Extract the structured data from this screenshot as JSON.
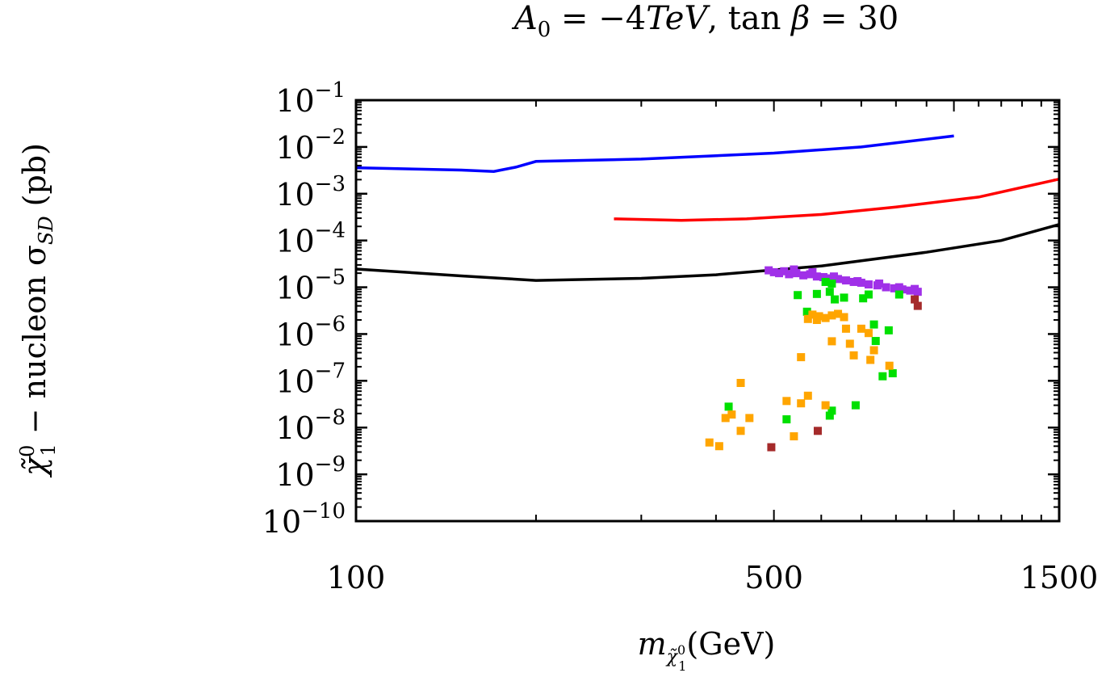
{
  "chart_data": {
    "type": "scatter",
    "title": "A₀ = −4TeV, tan β = 30",
    "title_parts": {
      "lhs": "A",
      "lhs_sub": "0",
      "eq1": " = −4",
      "italic": "TeV",
      "comma": ", tan ",
      "beta": "β",
      "eq2": " = 30"
    },
    "xlabel": {
      "m": "m",
      "sub_chi": "χ̃",
      "sub_sup": "0",
      "sub_sub": "1",
      "unit": "(GeV)"
    },
    "ylabel": {
      "chi": "χ̃",
      "sup": "0",
      "sub": "1",
      "text": " − nucleon σ",
      "sd": "SD",
      "unit": " (pb)"
    },
    "x_scale": "log",
    "y_scale": "log",
    "xlim": [
      100,
      1500
    ],
    "ylim_exp": [
      -10,
      -1
    ],
    "x_tick_labels": [
      {
        "value": 100,
        "label": "100"
      },
      {
        "value": 500,
        "label": "500"
      },
      {
        "value": 1500,
        "label": "1500"
      }
    ],
    "y_tick_labels": [
      {
        "exp": -1,
        "base": "10",
        "sup": "−1"
      },
      {
        "exp": -2,
        "base": "10",
        "sup": "−2"
      },
      {
        "exp": -3,
        "base": "10",
        "sup": "−3"
      },
      {
        "exp": -4,
        "base": "10",
        "sup": "−4"
      },
      {
        "exp": -5,
        "base": "10",
        "sup": "−5"
      },
      {
        "exp": -6,
        "base": "10",
        "sup": "−6"
      },
      {
        "exp": -7,
        "base": "10",
        "sup": "−7"
      },
      {
        "exp": -8,
        "base": "10",
        "sup": "−8"
      },
      {
        "exp": -9,
        "base": "10",
        "sup": "−9"
      },
      {
        "exp": -10,
        "base": "10",
        "sup": "−10"
      }
    ],
    "lines": [
      {
        "name": "blue-limit",
        "color": "#0000ff",
        "points": [
          [
            100,
            0.0036
          ],
          [
            150,
            0.0032
          ],
          [
            170,
            0.003
          ],
          [
            185,
            0.0037
          ],
          [
            200,
            0.0049
          ],
          [
            300,
            0.0055
          ],
          [
            500,
            0.0074
          ],
          [
            700,
            0.01
          ],
          [
            1000,
            0.0172
          ]
        ]
      },
      {
        "name": "red-limit",
        "color": "#ff0000",
        "points": [
          [
            270,
            0.00029
          ],
          [
            350,
            0.00027
          ],
          [
            450,
            0.00029
          ],
          [
            600,
            0.00036
          ],
          [
            800,
            0.00052
          ],
          [
            1100,
            0.00085
          ],
          [
            1500,
            0.00205
          ]
        ]
      },
      {
        "name": "black-limit",
        "color": "#000000",
        "points": [
          [
            100,
            2.45e-05
          ],
          [
            150,
            1.75e-05
          ],
          [
            200,
            1.4e-05
          ],
          [
            300,
            1.55e-05
          ],
          [
            400,
            1.85e-05
          ],
          [
            600,
            2.85e-05
          ],
          [
            900,
            5.6e-05
          ],
          [
            1200,
            0.0001
          ],
          [
            1500,
            0.00022
          ]
        ]
      }
    ],
    "series": [
      {
        "name": "purple-points",
        "color": "#a030e8",
        "points": [
          [
            490,
            2.3e-05
          ],
          [
            500,
            2.1e-05
          ],
          [
            510,
            2e-05
          ],
          [
            520,
            2.2e-05
          ],
          [
            530,
            1.9e-05
          ],
          [
            545,
            2e-05
          ],
          [
            560,
            1.8e-05
          ],
          [
            575,
            1.9e-05
          ],
          [
            590,
            1.7e-05
          ],
          [
            605,
            1.65e-05
          ],
          [
            620,
            1.55e-05
          ],
          [
            640,
            1.5e-05
          ],
          [
            660,
            1.4e-05
          ],
          [
            680,
            1.3e-05
          ],
          [
            700,
            1.25e-05
          ],
          [
            720,
            1.15e-05
          ],
          [
            745,
            1.1e-05
          ],
          [
            770,
            1e-05
          ],
          [
            795,
            9.5e-06
          ],
          [
            820,
            9e-06
          ],
          [
            845,
            8.5e-06
          ],
          [
            870,
            8e-06
          ],
          [
            540,
            2.4e-05
          ],
          [
            580,
            2.1e-05
          ],
          [
            630,
            1.7e-05
          ],
          [
            690,
            1.35e-05
          ],
          [
            750,
            1.2e-05
          ],
          [
            810,
            1e-05
          ],
          [
            860,
            9.2e-06
          ]
        ]
      },
      {
        "name": "green-points",
        "color": "#00e000",
        "points": [
          [
            548,
            6.8e-06
          ],
          [
            568,
            3e-06
          ],
          [
            590,
            7.2e-06
          ],
          [
            610,
            1.3e-05
          ],
          [
            620,
            8e-06
          ],
          [
            625,
            1.2e-05
          ],
          [
            632,
            5.5e-06
          ],
          [
            655,
            6e-06
          ],
          [
            705,
            5.8e-06
          ],
          [
            720,
            7e-06
          ],
          [
            735,
            1.6e-06
          ],
          [
            778,
            1.2e-06
          ],
          [
            740,
            7.1e-07
          ],
          [
            760,
            1.25e-07
          ],
          [
            790,
            1.45e-07
          ],
          [
            420,
            2.8e-08
          ],
          [
            525,
            1.5e-08
          ],
          [
            625,
            2.3e-08
          ],
          [
            620,
            1.8e-08
          ],
          [
            685,
            3e-08
          ],
          [
            810,
            7e-06
          ]
        ]
      },
      {
        "name": "orange-points",
        "color": "#ffa500",
        "points": [
          [
            580,
            2.6e-06
          ],
          [
            595,
            2.4e-06
          ],
          [
            610,
            2.2e-06
          ],
          [
            625,
            2.5e-06
          ],
          [
            640,
            2.7e-06
          ],
          [
            590,
            2e-06
          ],
          [
            570,
            2.1e-06
          ],
          [
            655,
            2.3e-06
          ],
          [
            660,
            1.3e-06
          ],
          [
            625,
            7e-07
          ],
          [
            670,
            6.2e-07
          ],
          [
            555,
            3.2e-07
          ],
          [
            680,
            3.5e-07
          ],
          [
            720,
            1.05e-06
          ],
          [
            735,
            4.5e-07
          ],
          [
            725,
            2.8e-07
          ],
          [
            780,
            2.1e-07
          ],
          [
            440,
            9e-08
          ],
          [
            525,
            3.7e-08
          ],
          [
            555,
            3.3e-08
          ],
          [
            570,
            4.8e-08
          ],
          [
            610,
            3e-08
          ],
          [
            425,
            1.9e-08
          ],
          [
            415,
            1.6e-08
          ],
          [
            455,
            1.6e-08
          ],
          [
            440,
            8.5e-09
          ],
          [
            540,
            6.5e-09
          ],
          [
            390,
            4.8e-09
          ],
          [
            405,
            4e-09
          ],
          [
            700,
            1.3e-06
          ]
        ]
      },
      {
        "name": "brown-points",
        "color": "#a52a2a",
        "points": [
          [
            870,
            4e-06
          ],
          [
            860,
            5.5e-06
          ],
          [
            495,
            3.8e-09
          ],
          [
            592,
            8.5e-09
          ]
        ]
      }
    ]
  }
}
